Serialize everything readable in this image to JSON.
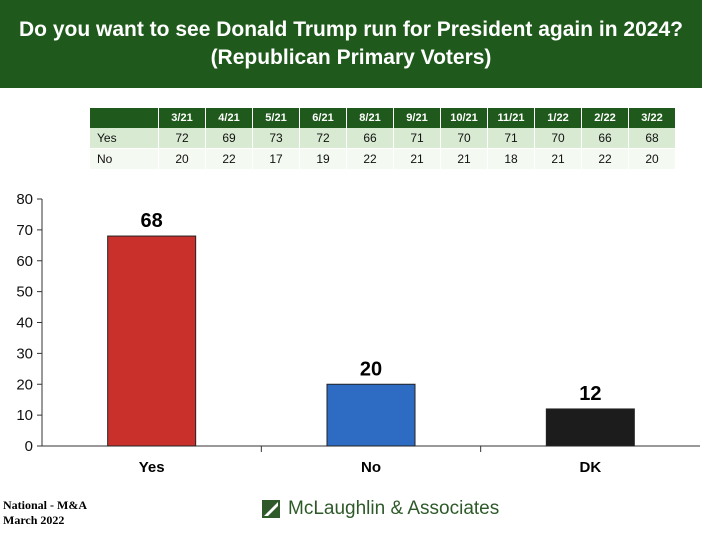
{
  "title": {
    "line1": "Do you want to see Donald Trump run for President again in 2024?",
    "line2": "(Republican Primary Voters)"
  },
  "trend_table": {
    "columns": [
      "3/21",
      "4/21",
      "5/21",
      "6/21",
      "8/21",
      "9/21",
      "10/21",
      "11/21",
      "1/22",
      "2/22",
      "3/22"
    ],
    "rows": [
      {
        "label": "Yes",
        "values": [
          "72",
          "69",
          "73",
          "72",
          "66",
          "71",
          "70",
          "71",
          "70",
          "66",
          "68"
        ]
      },
      {
        "label": "No",
        "values": [
          "20",
          "22",
          "17",
          "19",
          "22",
          "21",
          "21",
          "18",
          "21",
          "22",
          "20"
        ]
      }
    ]
  },
  "chart_data": {
    "type": "bar",
    "categories": [
      "Yes",
      "No",
      "DK"
    ],
    "values": [
      68,
      20,
      12
    ],
    "data_labels": [
      "68",
      "20",
      "12"
    ],
    "colors": [
      "#c9302c",
      "#2e6cc4",
      "#1c1c1c"
    ],
    "ylim": [
      0,
      80
    ],
    "yticks": [
      0,
      10,
      20,
      30,
      40,
      50,
      60,
      70,
      80
    ],
    "title": "",
    "xlabel": "",
    "ylabel": "",
    "grid": false
  },
  "footer": {
    "source_line1": "National - M&A",
    "source_line2": "March 2022",
    "brand": "McLaughlin & Associates",
    "brand_color": "#2e5a2a"
  },
  "colors": {
    "header_bg": "#1f5a1c",
    "yes_row": "#d9ead3",
    "no_row": "#f4f9f1"
  }
}
